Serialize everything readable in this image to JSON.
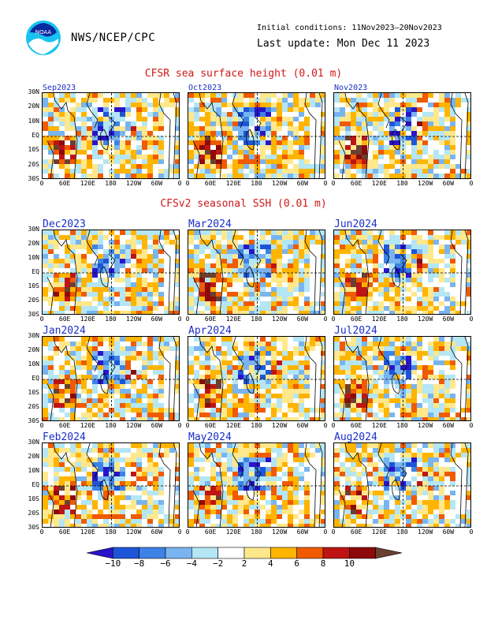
{
  "header": {
    "logo_text": "NOAA",
    "org": "NWS/NCEP/CPC",
    "initial_conditions": "Initial conditions: 11Nov2023–20Nov2023",
    "last_update": "Last update: Mon Dec 11 2023"
  },
  "section_obs": {
    "title": "CFSR sea surface height (0.01 m)"
  },
  "section_fcst": {
    "title": "CFSv2 seasonal SSH (0.01 m)"
  },
  "axes": {
    "ylabels": [
      "30N",
      "20N",
      "10N",
      "EQ",
      "10S",
      "20S",
      "30S"
    ],
    "xlabels": [
      "0",
      "60E",
      "120E",
      "180",
      "120W",
      "60W",
      "0"
    ]
  },
  "obs_panels": [
    {
      "title": "Sep2023"
    },
    {
      "title": "Oct2023"
    },
    {
      "title": "Nov2023"
    }
  ],
  "fcst_panels": [
    {
      "title": "Dec2023"
    },
    {
      "title": "Mar2024"
    },
    {
      "title": "Jun2024"
    },
    {
      "title": "Jan2024"
    },
    {
      "title": "Apr2024"
    },
    {
      "title": "Jul2024"
    },
    {
      "title": "Feb2024"
    },
    {
      "title": "May2024"
    },
    {
      "title": "Aug2024"
    }
  ],
  "colorbar": {
    "labels": [
      "−10",
      "−8",
      "−6",
      "−4",
      "−2",
      "2",
      "4",
      "6",
      "8",
      "10"
    ],
    "colors": [
      "#2a14c8",
      "#1e55d8",
      "#3d82e6",
      "#78b4f0",
      "#b4e6f5",
      "#ffffff",
      "#ffe88c",
      "#ffb400",
      "#f05a00",
      "#be1414",
      "#8c0a0a",
      "#6b4030"
    ]
  }
}
